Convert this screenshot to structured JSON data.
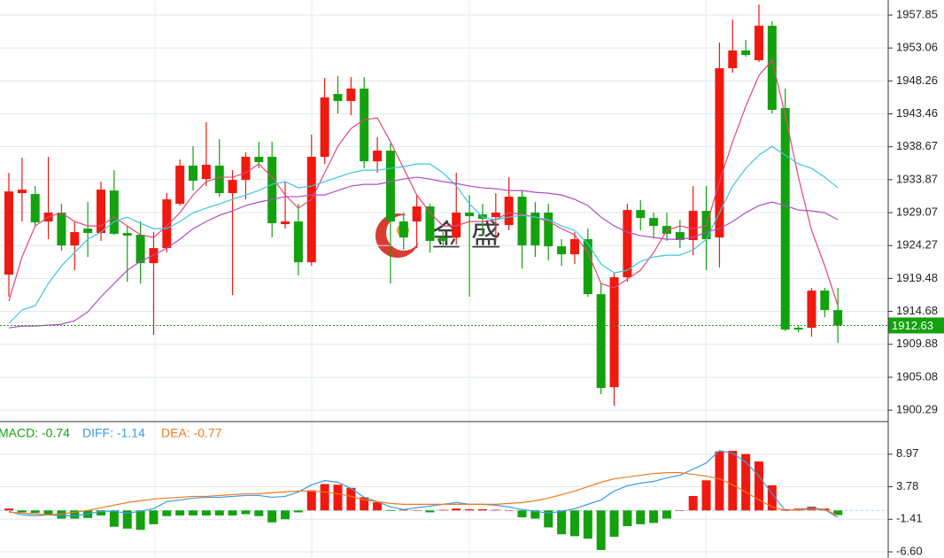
{
  "chart_data": [
    {
      "type": "candlestick",
      "ylim": [
        1898.75,
        1960.05
      ],
      "yticks": [
        1957.85,
        1953.06,
        1948.26,
        1943.46,
        1938.67,
        1933.87,
        1929.07,
        1924.27,
        1919.48,
        1914.68,
        1909.88,
        1905.08,
        1900.29
      ],
      "grid": true,
      "up_color": "#f0190f",
      "down_color": "#13a10e",
      "open": [
        1920.03,
        1931.91,
        1931.78,
        1927.78,
        1929.07,
        1924.29,
        1926.74,
        1926.1,
        1932.29,
        1926.1,
        1925.84,
        1921.71,
        1923.9,
        1930.36,
        1935.91,
        1933.97,
        1935.91,
        1931.91,
        1933.84,
        1937.2,
        1937.2,
        1927.39,
        1927.78,
        1921.84,
        1937.2,
        1946.36,
        1945.33,
        1947.14,
        1936.55,
        1938.1,
        1927.78,
        1927.78,
        1929.97,
        1925.45,
        1925.45,
        1929.07,
        1928.81,
        1928.42,
        1927.26,
        1931.39,
        1929.07,
        1929.07,
        1924.16,
        1923.0,
        1925.2,
        1917.19,
        1903.64,
        1919.65,
        1929.45,
        1928.29,
        1927.13,
        1926.23,
        1925.07,
        1929.32,
        1925.45,
        1950.11,
        1952.69,
        1951.27,
        1956.3,
        1944.3,
        1912.29,
        1912.29,
        1917.71,
        1914.87
      ],
      "high": [
        1934.87,
        1937.07,
        1932.94,
        1937.2,
        1930.36,
        1927.78,
        1930.61,
        1933.58,
        1935.26,
        1927.13,
        1927.78,
        1926.23,
        1931.91,
        1936.81,
        1938.75,
        1942.23,
        1939.78,
        1935.26,
        1937.84,
        1939.39,
        1939.39,
        1933.58,
        1930.36,
        1940.43,
        1948.69,
        1948.94,
        1948.81,
        1948.81,
        1940.04,
        1939.13,
        1929.07,
        1931.65,
        1930.36,
        1926.23,
        1934.87,
        1931.65,
        1930.36,
        1931.91,
        1934.23,
        1932.29,
        1930.61,
        1930.36,
        1925.2,
        1926.23,
        1926.74,
        1918.74,
        1920.29,
        1930.36,
        1930.87,
        1929.07,
        1929.07,
        1928.03,
        1932.94,
        1932.94,
        1953.85,
        1957.2,
        1954.24,
        1959.4,
        1956.95,
        1947.14,
        1912.55,
        1918.1,
        1918.1,
        1918.1
      ],
      "low": [
        1916.81,
        1927.78,
        1927.0,
        1925.2,
        1923.52,
        1920.68,
        1922.61,
        1924.94,
        1925.84,
        1919.0,
        1918.74,
        1911.25,
        1923.26,
        1930.1,
        1932.29,
        1932.94,
        1931.39,
        1917.06,
        1931.0,
        1935.52,
        1925.45,
        1926.74,
        1919.91,
        1921.32,
        1936.17,
        1943.52,
        1943.26,
        1935.52,
        1934.87,
        1918.74,
        1923.65,
        1923.9,
        1923.26,
        1924.16,
        1924.42,
        1916.81,
        1925.84,
        1924.94,
        1926.49,
        1920.94,
        1922.61,
        1922.1,
        1921.32,
        1921.58,
        1916.81,
        1902.61,
        1900.93,
        1919.0,
        1926.49,
        1925.45,
        1924.94,
        1923.9,
        1922.87,
        1920.68,
        1921.07,
        1949.46,
        1951.78,
        1951.01,
        1943.52,
        1911.77,
        1911.64,
        1910.99,
        1913.84,
        1910.09
      ],
      "close": [
        1932.16,
        1932.42,
        1927.65,
        1929.07,
        1924.29,
        1926.23,
        1926.1,
        1932.42,
        1925.97,
        1925.71,
        1921.71,
        1923.9,
        1931.0,
        1935.91,
        1933.71,
        1936.04,
        1931.91,
        1933.84,
        1937.2,
        1936.42,
        1927.52,
        1927.78,
        1921.84,
        1937.2,
        1945.85,
        1945.33,
        1947.14,
        1936.55,
        1938.1,
        1927.78,
        1925.45,
        1929.97,
        1924.94,
        1924.94,
        1929.07,
        1928.55,
        1928.16,
        1929.07,
        1931.39,
        1924.29,
        1924.29,
        1924.16,
        1923.0,
        1925.2,
        1917.19,
        1903.51,
        1919.65,
        1929.45,
        1928.29,
        1927.13,
        1925.97,
        1925.07,
        1929.32,
        1925.2,
        1950.11,
        1952.69,
        1952.04,
        1956.3,
        1944.04,
        1912.03,
        1912.03,
        1917.71,
        1914.87,
        1912.63
      ],
      "series": [
        {
          "color": "#e6457a",
          "values": [
            1916.16,
            1922.61,
            1927.13,
            1928.42,
            1929.06,
            1927.77,
            1927.13,
            1927.13,
            1928.42,
            1927.13,
            1925.84,
            1925.45,
            1927.13,
            1929.06,
            1931.64,
            1933.58,
            1934.23,
            1934.23,
            1934.87,
            1936.16,
            1934.23,
            1931.64,
            1929.71,
            1931.0,
            1934.87,
            1938.74,
            1941.32,
            1942.62,
            1942.87,
            1939.39,
            1935.52,
            1931.64,
            1929.06,
            1927.13,
            1927.13,
            1927.77,
            1927.77,
            1928.03,
            1929.06,
            1928.81,
            1928.42,
            1927.77,
            1926.74,
            1925.84,
            1923.26,
            1918.74,
            1918.09,
            1919.38,
            1920.67,
            1923.26,
            1926.48,
            1927.13,
            1926.74,
            1927.13,
            1933.58,
            1939.39,
            1944.55,
            1949.07,
            1951.26,
            1943.26,
            1934.23,
            1926.48,
            1921.32,
            1915.51
          ]
        },
        {
          "color": "#3ec6e0",
          "values": [
            1912.93,
            1914.87,
            1915.51,
            1918.74,
            1921.32,
            1923.26,
            1925.19,
            1926.22,
            1927.77,
            1928.42,
            1927.51,
            1926.74,
            1926.74,
            1927.77,
            1929.06,
            1929.71,
            1930.35,
            1931.0,
            1931.64,
            1932.29,
            1933.19,
            1933.58,
            1932.68,
            1932.94,
            1933.58,
            1934.23,
            1934.87,
            1935.26,
            1935.26,
            1935.52,
            1935.77,
            1936.16,
            1936.16,
            1934.87,
            1932.94,
            1930.35,
            1928.42,
            1928.03,
            1928.42,
            1928.68,
            1928.42,
            1928.03,
            1927.13,
            1926.48,
            1924.55,
            1921.58,
            1920.29,
            1920.67,
            1921.96,
            1922.61,
            1922.87,
            1922.87,
            1923.64,
            1925.19,
            1929.06,
            1932.94,
            1935.52,
            1937.45,
            1938.74,
            1937.45,
            1936.16,
            1935.52,
            1934.23,
            1932.68
          ]
        },
        {
          "color": "#b14cc6",
          "values": [
            1912.28,
            1912.54,
            1912.54,
            1912.67,
            1912.8,
            1913.32,
            1914.61,
            1916.8,
            1918.74,
            1920.67,
            1921.96,
            1922.87,
            1923.9,
            1925.19,
            1926.74,
            1927.77,
            1928.68,
            1929.32,
            1930.1,
            1930.61,
            1931.0,
            1931.39,
            1931.39,
            1931.64,
            1931.64,
            1932.29,
            1932.94,
            1933.19,
            1933.19,
            1933.58,
            1933.97,
            1934.23,
            1933.97,
            1933.58,
            1933.32,
            1932.94,
            1932.68,
            1932.55,
            1932.29,
            1932.29,
            1932.03,
            1931.9,
            1931.64,
            1931.0,
            1930.1,
            1928.42,
            1927.13,
            1926.22,
            1925.71,
            1925.45,
            1925.19,
            1925.19,
            1925.45,
            1926.22,
            1926.74,
            1927.77,
            1929.06,
            1930.1,
            1930.61,
            1930.1,
            1929.45,
            1929.32,
            1929.06,
            1928.03
          ]
        }
      ],
      "last_price": 1912.63,
      "last_price_color": "#13a10e",
      "watermark": "金 盛"
    },
    {
      "type": "macd",
      "ylim": [
        -7.58,
        14.02
      ],
      "yticks": [
        8.97,
        3.78,
        -1.41,
        {
          "value": -6.6,
          "label": "-6.60"
        }
      ],
      "grid": true,
      "histogram": {
        "label": "MACD: -0.74",
        "color": "#13a10e",
        "up_color": "#f0190f",
        "down_color": "#13a10e",
        "values": [
          0.3,
          -0.3,
          -0.4,
          -0.6,
          -1.3,
          -1.3,
          -1.2,
          -0.8,
          -2.6,
          -2.9,
          -3.1,
          -2.2,
          -0.9,
          -0.8,
          -0.8,
          -0.8,
          -0.8,
          -0.8,
          -0.6,
          -0.9,
          -1.9,
          -1.4,
          -0.3,
          3.2,
          4.2,
          4.1,
          3.6,
          2.1,
          1.3,
          -0.1,
          0.1,
          0,
          -0.3,
          0.1,
          0.3,
          0.2,
          0.2,
          0.1,
          0,
          -1.1,
          -1.3,
          -2.7,
          -3.8,
          -4.1,
          -4.5,
          -6.3,
          -4.2,
          -2.5,
          -2.2,
          -2.0,
          -1.3,
          0,
          2.3,
          4.8,
          9.4,
          9.5,
          9.0,
          7.8,
          4.0,
          0.2,
          0.3,
          0.6,
          0.3,
          -0.74
        ]
      },
      "series": [
        {
          "label": "DIFF: -1.14",
          "color": "#3a9be6",
          "values": [
            -0.14,
            -0.7,
            -0.84,
            -0.7,
            -0.84,
            -0.84,
            -0.56,
            -0.14,
            -0.14,
            -0.42,
            -0.14,
            0.28,
            1.4,
            1.68,
            1.96,
            2.1,
            2.1,
            2.24,
            2.38,
            2.38,
            2.1,
            2.24,
            2.95,
            4.07,
            4.77,
            4.49,
            3.51,
            2.1,
            1.4,
            0.56,
            0.14,
            0.42,
            0.7,
            0.98,
            1.26,
            0.98,
            0.98,
            0.84,
            0.56,
            0.14,
            -0.14,
            -0.42,
            -0.14,
            0.28,
            0.98,
            1.68,
            3.09,
            3.93,
            4.35,
            4.63,
            5.19,
            5.61,
            6.59,
            7.57,
            9.54,
            9.12,
            7.71,
            5.47,
            2.66,
            0,
            0.14,
            0.42,
            0.14,
            -1.14
          ]
        },
        {
          "label": "DEA: -0.77",
          "color": "#f07a1e",
          "values": [
            -0.28,
            -0.42,
            -0.56,
            -0.7,
            -0.56,
            -0.28,
            0,
            0.42,
            0.84,
            1.26,
            1.54,
            1.82,
            1.96,
            2.1,
            2.24,
            2.24,
            2.38,
            2.52,
            2.66,
            2.66,
            2.81,
            2.95,
            3.09,
            3.09,
            2.95,
            2.66,
            2.24,
            1.68,
            1.4,
            1.12,
            0.98,
            0.98,
            0.98,
            0.98,
            0.98,
            0.98,
            0.98,
            0.98,
            1.12,
            1.26,
            1.54,
            1.96,
            2.52,
            3.09,
            3.79,
            4.49,
            5.05,
            5.33,
            5.61,
            5.89,
            6.03,
            6.03,
            5.75,
            5.47,
            5.05,
            4.07,
            2.95,
            1.68,
            0.56,
            0,
            0.14,
            0.14,
            0.14,
            -0.77
          ]
        }
      ]
    }
  ]
}
